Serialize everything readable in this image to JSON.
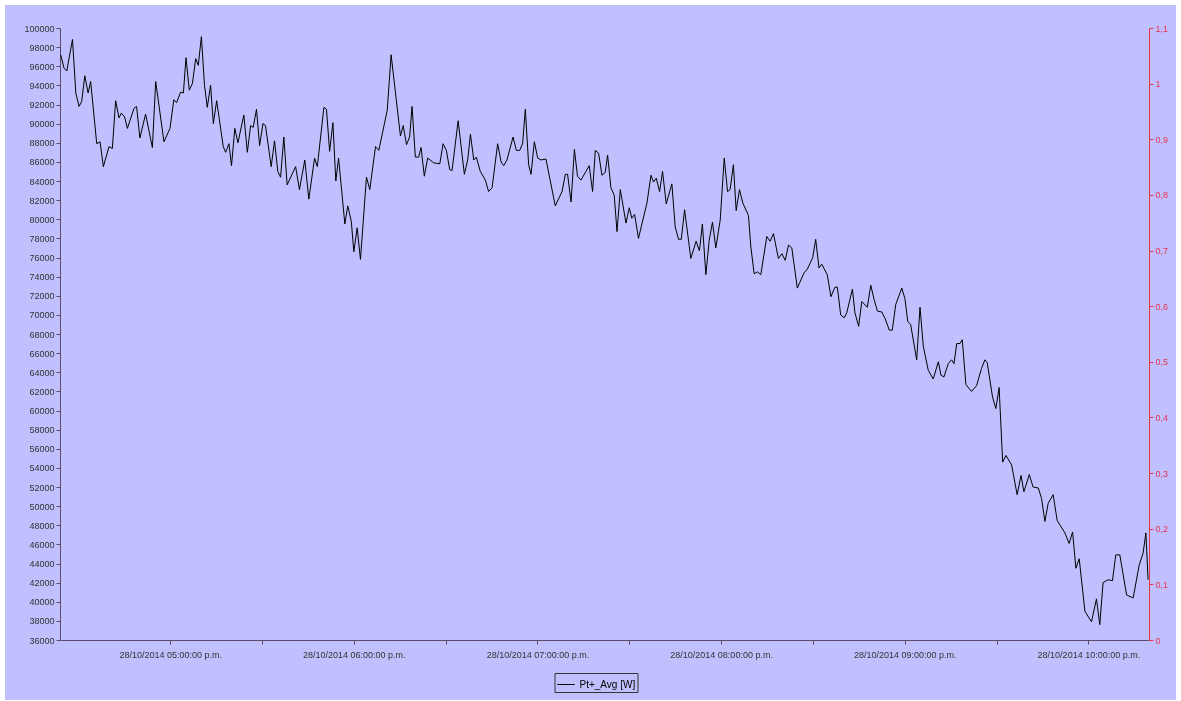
{
  "chart_data": {
    "type": "line",
    "x": [
      "2014-10-28T16:24:14",
      "2014-10-28T16:25:19",
      "2014-10-28T16:26:13",
      "2014-10-28T16:28:05",
      "2014-10-28T16:29:10",
      "2014-10-28T16:30:14",
      "2014-10-28T16:31:05",
      "2014-10-28T16:32:06",
      "2014-10-28T16:33:11",
      "2014-10-28T16:34:01",
      "2014-10-28T16:36:00",
      "2014-10-28T16:37:05",
      "2014-10-28T16:38:10",
      "2014-10-28T16:40:01",
      "2014-10-28T16:41:06",
      "2014-10-28T16:42:11",
      "2014-10-28T16:43:16",
      "2014-10-28T16:44:02",
      "2014-10-28T16:45:07",
      "2014-10-28T16:46:01",
      "2014-10-28T16:48:11",
      "2014-10-28T16:49:01",
      "2014-10-28T16:50:06",
      "2014-10-28T16:51:58",
      "2014-10-28T16:54:11",
      "2014-10-28T16:55:16",
      "2014-10-28T16:57:58",
      "2014-10-28T16:59:56",
      "2014-10-28T17:01:12",
      "2014-10-28T17:02:06",
      "2014-10-28T17:03:25",
      "2014-10-28T17:04:19",
      "2014-10-28T17:05:10",
      "2014-10-28T17:06:14",
      "2014-10-28T17:07:16",
      "2014-10-28T17:08:20",
      "2014-10-28T17:09:11",
      "2014-10-28T17:10:12",
      "2014-10-28T17:11:13",
      "2014-10-28T17:12:07",
      "2014-10-28T17:13:12",
      "2014-10-28T17:14:06",
      "2014-10-28T17:15:11",
      "2014-10-28T17:17:20",
      "2014-10-28T17:18:07",
      "2014-10-28T17:19:12",
      "2014-10-28T17:20:02",
      "2014-10-28T17:21:07",
      "2014-10-28T17:22:08",
      "2014-10-28T17:24:04",
      "2014-10-28T17:25:12",
      "2014-10-28T17:26:17",
      "2014-10-28T17:27:07",
      "2014-10-28T17:28:12",
      "2014-10-28T17:29:13",
      "2014-10-28T17:30:18",
      "2014-10-28T17:31:08",
      "2014-10-28T17:33:00",
      "2014-10-28T17:34:05",
      "2014-10-28T17:35:10",
      "2014-10-28T17:36:04",
      "2014-10-28T17:37:08",
      "2014-10-28T17:38:13",
      "2014-10-28T17:40:59",
      "2014-10-28T17:42:14",
      "2014-10-28T17:43:59",
      "2014-10-28T17:45:18",
      "2014-10-28T17:47:10",
      "2014-10-28T17:48:04",
      "2014-10-28T17:50:13",
      "2014-10-28T17:51:04",
      "2014-10-28T17:52:05",
      "2014-10-28T17:53:10",
      "2014-10-28T17:54:07",
      "2014-10-28T17:55:01",
      "2014-10-28T17:57:04",
      "2014-10-28T17:58:01",
      "2014-10-28T17:59:10",
      "2014-10-28T18:00:00",
      "2014-10-28T18:01:05",
      "2014-10-28T18:02:10",
      "2014-10-28T18:04:08",
      "2014-10-28T18:05:13",
      "2014-10-28T18:07:05",
      "2014-10-28T18:08:10",
      "2014-10-28T18:10:55",
      "2014-10-28T18:12:11",
      "2014-10-28T18:13:37",
      "2014-10-28T18:15:14",
      "2014-10-28T18:16:08",
      "2014-10-28T18:17:13",
      "2014-10-28T18:18:14",
      "2014-10-28T18:19:01",
      "2014-10-28T18:20:06",
      "2014-10-28T18:21:11",
      "2014-10-28T18:21:58",
      "2014-10-28T18:23:02",
      "2014-10-28T18:24:07",
      "2014-10-28T18:26:06",
      "2014-10-28T18:28:05",
      "2014-10-28T18:29:10",
      "2014-10-28T18:30:14",
      "2014-10-28T18:31:19",
      "2014-10-28T18:32:06",
      "2014-10-28T18:34:05",
      "2014-10-28T18:36:07",
      "2014-10-28T18:37:12",
      "2014-10-28T18:38:06",
      "2014-10-28T18:39:11",
      "2014-10-28T18:40:01",
      "2014-10-28T18:41:20",
      "2014-10-28T18:42:58",
      "2014-10-28T18:44:02",
      "2014-10-28T18:45:11",
      "2014-10-28T18:46:59",
      "2014-10-28T18:48:07",
      "2014-10-28T18:48:58",
      "2014-10-28T18:50:02",
      "2014-10-28T18:52:01",
      "2014-10-28T18:53:06",
      "2014-10-28T18:54:11",
      "2014-10-28T18:55:08",
      "2014-10-28T18:56:02",
      "2014-10-28T18:57:07",
      "2014-10-28T18:57:54",
      "2014-10-28T18:58:59",
      "2014-10-28T19:00:04",
      "2014-10-28T19:01:08",
      "2014-10-28T19:02:46",
      "2014-10-28T19:05:49",
      "2014-10-28T19:08:02",
      "2014-10-28T19:09:07",
      "2014-10-28T19:09:50",
      "2014-10-28T19:10:59",
      "2014-10-28T19:12:04",
      "2014-10-28T19:13:05",
      "2014-10-28T19:14:13",
      "2014-10-28T19:16:55",
      "2014-10-28T19:18:00",
      "2014-10-28T19:18:54",
      "2014-10-28T19:19:59",
      "2014-10-28T19:21:04",
      "2014-10-28T19:22:08",
      "2014-10-28T19:22:55",
      "2014-10-28T19:24:00",
      "2014-10-28T19:25:05",
      "2014-10-28T19:25:59",
      "2014-10-28T19:27:04",
      "2014-10-28T19:28:55",
      "2014-10-28T19:30:00",
      "2014-10-28T19:30:50",
      "2014-10-28T19:31:44",
      "2014-10-28T19:33:00",
      "2014-10-28T19:35:46",
      "2014-10-28T19:37:05",
      "2014-10-28T19:37:55",
      "2014-10-28T19:38:49",
      "2014-10-28T19:39:54",
      "2014-10-28T19:40:52",
      "2014-10-28T19:42:04",
      "2014-10-28T19:43:55",
      "2014-10-28T19:45:00",
      "2014-10-28T19:46:05",
      "2014-10-28T19:46:59",
      "2014-10-28T19:48:04",
      "2014-10-28T19:50:06",
      "2014-10-28T19:51:50",
      "2014-10-28T19:52:55",
      "2014-10-28T19:53:53",
      "2014-10-28T19:55:01",
      "2014-10-28T19:56:06",
      "2014-10-28T19:57:11",
      "2014-10-28T19:58:16",
      "2014-10-28T19:59:42",
      "2014-10-28T20:01:01",
      "2014-10-28T20:02:06",
      "2014-10-28T20:02:56",
      "2014-10-28T20:04:01",
      "2014-10-28T20:04:55",
      "2014-10-28T20:06:00",
      "2014-10-28T20:07:05",
      "2014-10-28T20:08:56",
      "2014-10-28T20:09:43",
      "2014-10-28T20:10:48",
      "2014-10-28T20:11:53",
      "2014-10-28T20:12:58",
      "2014-10-28T20:14:56",
      "2014-10-28T20:16:01",
      "2014-10-28T20:17:06",
      "2014-10-28T20:18:43",
      "2014-10-28T20:19:52",
      "2014-10-28T20:20:56",
      "2014-10-28T20:22:01",
      "2014-10-28T20:23:06",
      "2014-10-28T20:24:54",
      "2014-10-28T20:27:07",
      "2014-10-28T20:28:12",
      "2014-10-28T20:29:56",
      "2014-10-28T20:30:54",
      "2014-10-28T20:31:59",
      "2014-10-28T20:32:53",
      "2014-10-28T20:34:41",
      "2014-10-28T20:35:53",
      "2014-10-28T20:37:12",
      "2014-10-28T20:37:59",
      "2014-10-28T20:39:04",
      "2014-10-28T20:40:12",
      "2014-10-28T20:41:02",
      "2014-10-28T20:42:54",
      "2014-10-28T20:43:44",
      "2014-10-28T20:44:56",
      "2014-10-28T20:45:58",
      "2014-10-28T20:47:46",
      "2014-10-28T20:48:54",
      "2014-10-28T20:49:59",
      "2014-10-28T20:51:04",
      "2014-10-28T20:52:30",
      "2014-10-28T20:53:35",
      "2014-10-28T20:54:58",
      "2014-10-28T20:55:55",
      "2014-10-28T20:57:04",
      "2014-10-28T20:59:02",
      "2014-10-28T21:00:04",
      "2014-10-28T21:00:58",
      "2014-10-28T21:01:55",
      "2014-10-28T21:03:54",
      "2014-10-28T21:04:59",
      "2014-10-28T21:06:04",
      "2014-10-28T21:07:41",
      "2014-10-28T21:09:18",
      "2014-10-28T21:10:59",
      "2014-10-28T21:11:49",
      "2014-10-28T21:12:47",
      "2014-10-28T21:14:13",
      "2014-10-28T21:15:18",
      "2014-10-28T21:16:05",
      "2014-10-28T21:16:59",
      "2014-10-28T21:18:04",
      "2014-10-28T21:18:47",
      "2014-10-28T21:19:59",
      "2014-10-28T21:21:50",
      "2014-10-28T21:23:28",
      "2014-10-28T21:25:05",
      "2014-10-28T21:26:10",
      "2014-10-28T21:26:56",
      "2014-10-28T21:28:41",
      "2014-10-28T21:29:46",
      "2014-10-28T21:30:50",
      "2014-10-28T21:31:59",
      "2014-10-28T21:33:04",
      "2014-10-28T21:34:55",
      "2014-10-28T21:36:43",
      "2014-10-28T21:37:59",
      "2014-10-28T21:38:56",
      "2014-10-28T21:40:41",
      "2014-10-28T21:41:56",
      "2014-10-28T21:43:37",
      "2014-10-28T21:44:42",
      "2014-10-28T21:45:47",
      "2014-10-28T21:46:52",
      "2014-10-28T21:48:29",
      "2014-10-28T21:49:48",
      "2014-10-28T21:52:19",
      "2014-10-28T21:53:42",
      "2014-10-28T21:54:50",
      "2014-10-28T21:55:55",
      "2014-10-28T21:57:00",
      "2014-10-28T21:58:52",
      "2014-10-28T22:01:01",
      "2014-10-28T22:02:38",
      "2014-10-28T22:03:43",
      "2014-10-28T22:04:48",
      "2014-10-28T22:06:25",
      "2014-10-28T22:07:52",
      "2014-10-28T22:08:56",
      "2014-10-28T22:10:16",
      "2014-10-28T22:12:29",
      "2014-10-28T22:14:38",
      "2014-10-28T22:16:34",
      "2014-10-28T22:17:53",
      "2014-10-28T22:18:47",
      "2014-10-28T22:19:30"
    ],
    "series": [
      {
        "name": "Pt+_Avg [W]",
        "color": "#000000",
        "values": [
          97200,
          95800,
          95500,
          98800,
          93200,
          91800,
          92300,
          95000,
          93200,
          94400,
          87900,
          88100,
          85500,
          87600,
          87400,
          92400,
          90600,
          91100,
          90700,
          89500,
          91600,
          91800,
          88500,
          91000,
          87500,
          94400,
          88100,
          89500,
          92500,
          92200,
          93300,
          93200,
          96900,
          93500,
          94200,
          96800,
          96100,
          99100,
          94000,
          91700,
          94000,
          90000,
          92400,
          87600,
          87000,
          87900,
          85600,
          89500,
          88000,
          90900,
          87000,
          89800,
          89600,
          91500,
          87700,
          90000,
          89800,
          85500,
          88200,
          85000,
          84400,
          88600,
          83600,
          85500,
          83100,
          86200,
          82100,
          86400,
          85500,
          91700,
          91500,
          87100,
          90100,
          84000,
          86400,
          79500,
          81400,
          79800,
          76600,
          79100,
          75800,
          84400,
          83100,
          87600,
          87200,
          91400,
          97200,
          93200,
          88700,
          89800,
          87800,
          88600,
          91800,
          86500,
          86500,
          87500,
          84500,
          86400,
          85900,
          85800,
          87900,
          87200,
          85200,
          85100,
          90300,
          84700,
          86200,
          88900,
          86200,
          86500,
          85000,
          84100,
          82900,
          83300,
          87900,
          86000,
          85600,
          86200,
          88600,
          87200,
          87200,
          87900,
          91500,
          85700,
          84700,
          88100,
          86400,
          86200,
          86300,
          81400,
          82900,
          84700,
          84700,
          81800,
          87300,
          84500,
          84100,
          85600,
          82900,
          87200,
          86900,
          84600,
          84900,
          86700,
          83300,
          82500,
          78700,
          83100,
          79600,
          81200,
          80100,
          80500,
          78000,
          81700,
          84600,
          83900,
          84300,
          82900,
          85000,
          81600,
          83700,
          79200,
          77900,
          77900,
          81000,
          75900,
          77700,
          76700,
          79500,
          74200,
          77800,
          79700,
          77000,
          79900,
          86400,
          82900,
          83100,
          85700,
          80900,
          83100,
          81700,
          80400,
          77100,
          74300,
          74500,
          74200,
          78200,
          77700,
          78500,
          75900,
          76400,
          75700,
          77300,
          77000,
          72800,
          74400,
          74800,
          76000,
          77900,
          74900,
          75300,
          74200,
          71900,
          72900,
          72900,
          70000,
          69700,
          70200,
          72700,
          70200,
          68800,
          71400,
          70800,
          73100,
          71600,
          70400,
          70300,
          69600,
          68400,
          68400,
          71100,
          72800,
          71700,
          69300,
          69000,
          65300,
          70800,
          66700,
          64200,
          63300,
          65100,
          63700,
          63500,
          64900,
          65300,
          64900,
          67000,
          67000,
          67400,
          62700,
          62000,
          62600,
          64400,
          65300,
          65000,
          61400,
          60200,
          62400,
          54600,
          55300,
          54300,
          51200,
          53200,
          51500,
          53300,
          52000,
          51900,
          50800,
          48400,
          50300,
          51200,
          48500,
          47200,
          46100,
          47300,
          43500,
          44500,
          39000,
          37900,
          40300,
          37600,
          42000,
          42300,
          42200,
          44900,
          44900,
          40700,
          40400,
          43800,
          45100,
          47200,
          42300
        ]
      }
    ],
    "xlim": [
      "2014-10-28T16:24:00",
      "2014-10-28T22:19:48"
    ],
    "xticks": [
      {
        "value": "2014-10-28T17:00",
        "label": "28/10/2014 05:00:00 p.m."
      },
      {
        "value": "2014-10-28T17:30",
        "label": null
      },
      {
        "value": "2014-10-28T18:00",
        "label": "28/10/2014 06:00:00 p.m."
      },
      {
        "value": "2014-10-28T18:30",
        "label": null
      },
      {
        "value": "2014-10-28T19:00",
        "label": "28/10/2014 07:00:00 p.m."
      },
      {
        "value": "2014-10-28T19:30",
        "label": null
      },
      {
        "value": "2014-10-28T20:00",
        "label": "28/10/2014 08:00:00 p.m."
      },
      {
        "value": "2014-10-28T20:30",
        "label": null
      },
      {
        "value": "2014-10-28T21:00",
        "label": "28/10/2014 09:00:00 p.m."
      },
      {
        "value": "2014-10-28T21:30",
        "label": null
      },
      {
        "value": "2014-10-28T22:00",
        "label": "28/10/2014 10:00:00 p.m."
      }
    ],
    "ylim": [
      36000,
      100000
    ],
    "yticks": [
      36000,
      38000,
      40000,
      42000,
      44000,
      46000,
      48000,
      50000,
      52000,
      54000,
      56000,
      58000,
      60000,
      62000,
      64000,
      66000,
      68000,
      70000,
      72000,
      74000,
      76000,
      78000,
      80000,
      82000,
      84000,
      86000,
      88000,
      90000,
      92000,
      94000,
      96000,
      98000,
      100000
    ],
    "y2lim": [
      0,
      1.1
    ],
    "y2ticks": [
      0,
      {
        "value": 0.1,
        "label": "0,1"
      },
      {
        "value": 0.2,
        "label": "0,2"
      },
      {
        "value": 0.3,
        "label": "0,3"
      },
      {
        "value": 0.4,
        "label": "0,4"
      },
      {
        "value": 0.5,
        "label": "0,5"
      },
      {
        "value": 0.6,
        "label": "0,6"
      },
      {
        "value": 0.7,
        "label": "0,7"
      },
      {
        "value": 0.8,
        "label": "0,8"
      },
      {
        "value": 0.9,
        "label": "0,9"
      },
      1,
      {
        "value": 1.1,
        "label": "1,1"
      }
    ],
    "legend": "bottom"
  }
}
